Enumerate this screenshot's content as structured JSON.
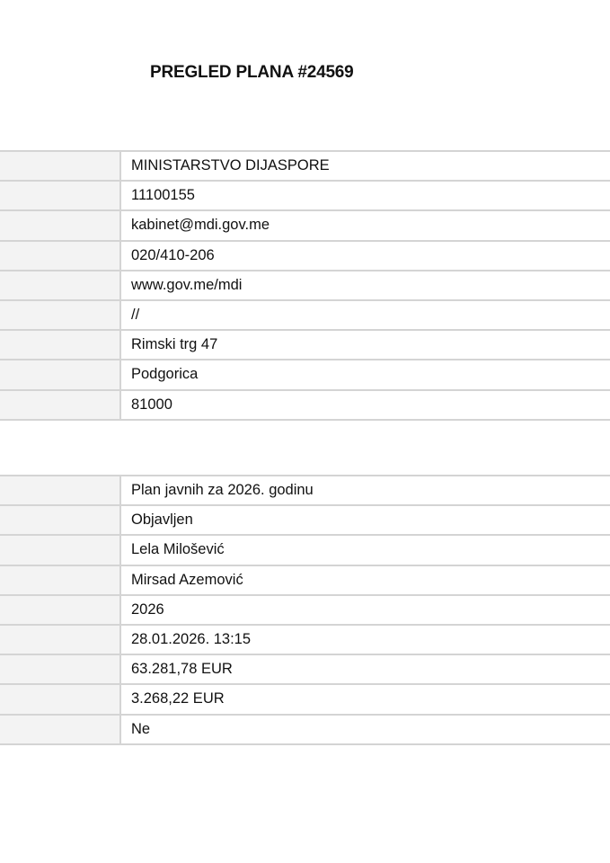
{
  "title": "PREGLED PLANA #24569",
  "institution": [
    "MINISTARSTVO DIJASPORE",
    "11100155",
    "kabinet@mdi.gov.me",
    "020/410-206",
    "www.gov.me/mdi",
    "//",
    "Rimski trg 47",
    "Podgorica",
    "81000"
  ],
  "plan": [
    "Plan javnih za 2026. godinu",
    "Objavljen",
    "Lela Milošević",
    "Mirsad Azemović",
    "2026",
    "28.01.2026. 13:15",
    "63.281,78 EUR",
    "3.268,22 EUR",
    "Ne"
  ]
}
